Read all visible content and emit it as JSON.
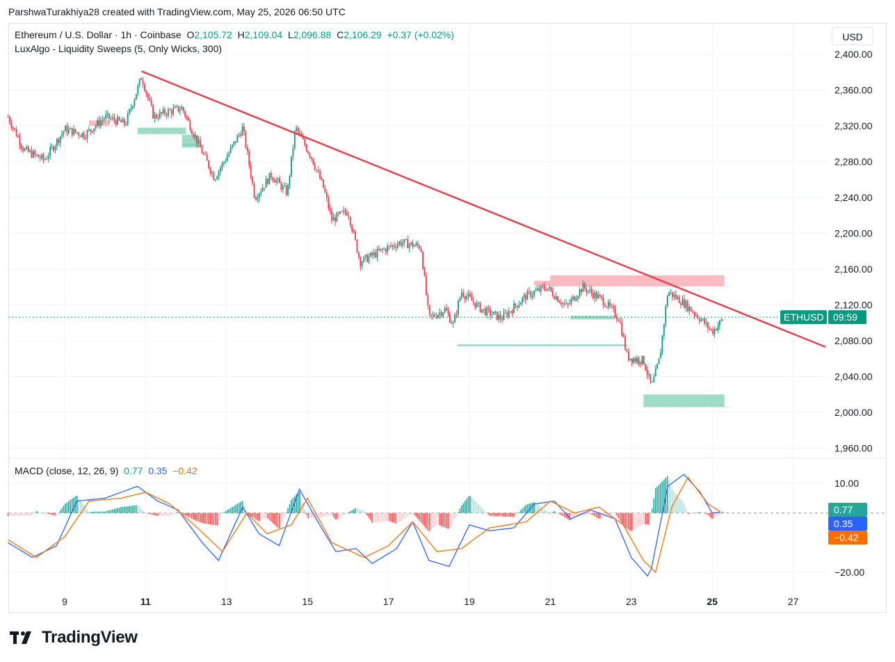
{
  "header": {
    "attribution": "ParshwaTurakhiya28 created with TradingView.com, May 25, 2026 06:50 UTC"
  },
  "legend": {
    "symbol": "Ethereum / U.S. Dollar · 1h · Coinbase",
    "o_label": "O",
    "o_value": "2,105.72",
    "h_label": "H",
    "h_value": "2,109.04",
    "l_label": "L",
    "l_value": "2,096.88",
    "c_label": "C",
    "c_value": "2,106.29",
    "change": "+0.37 (+0.02%)",
    "indicator": "LuxAlgo - Liquidity Sweeps (5, Only Wicks, 300)"
  },
  "macd_legend": {
    "title": "MACD (close, 12, 26, 9)",
    "hist": "0.77",
    "macd": "0.35",
    "signal": "−0.42"
  },
  "currency_label": "USD",
  "footer": {
    "brand": "TradingView"
  },
  "colors": {
    "up": "#089981",
    "down": "#f23645",
    "trendline": "#e0424f",
    "macd": "#2962ff",
    "signal": "#ff6d00",
    "zone_green": "#7fcfb3",
    "zone_red": "#f7a9b0"
  },
  "chart_data": [
    {
      "type": "candlestick",
      "title": "Ethereum / U.S. Dollar · 1h · Coinbase",
      "ylim": [
        1940,
        2420
      ],
      "y_ticks": [
        "2,400.00",
        "2,360.00",
        "2,320.00",
        "2,280.00",
        "2,240.00",
        "2,200.00",
        "2,160.00",
        "2,120.00",
        "2,080.00",
        "2,040.00",
        "2,000.00",
        "1,960.00"
      ],
      "x_ticks": [
        "9",
        "11",
        "13",
        "15",
        "17",
        "19",
        "21",
        "23",
        "25",
        "27"
      ],
      "x_ticks_bold": [
        "11",
        "25"
      ],
      "price_label": {
        "symbol": "ETHUSD",
        "countdown": "09:59",
        "price": 2106.29
      },
      "trendline": {
        "from": {
          "day": 10.9,
          "price": 2381
        },
        "to": {
          "day": 27.8,
          "price": 2073
        }
      },
      "path_close": [
        {
          "day": 7.6,
          "price": 2330
        },
        {
          "day": 8.0,
          "price": 2293
        },
        {
          "day": 8.5,
          "price": 2282
        },
        {
          "day": 9.0,
          "price": 2316
        },
        {
          "day": 9.5,
          "price": 2310
        },
        {
          "day": 10.0,
          "price": 2330
        },
        {
          "day": 10.5,
          "price": 2322
        },
        {
          "day": 10.9,
          "price": 2375
        },
        {
          "day": 11.2,
          "price": 2330
        },
        {
          "day": 11.5,
          "price": 2335
        },
        {
          "day": 11.9,
          "price": 2340
        },
        {
          "day": 12.3,
          "price": 2300
        },
        {
          "day": 12.7,
          "price": 2262
        },
        {
          "day": 13.0,
          "price": 2285
        },
        {
          "day": 13.4,
          "price": 2318
        },
        {
          "day": 13.7,
          "price": 2240
        },
        {
          "day": 14.1,
          "price": 2265
        },
        {
          "day": 14.5,
          "price": 2245
        },
        {
          "day": 14.7,
          "price": 2318
        },
        {
          "day": 15.1,
          "price": 2285
        },
        {
          "day": 15.4,
          "price": 2250
        },
        {
          "day": 15.6,
          "price": 2215
        },
        {
          "day": 16.0,
          "price": 2225
        },
        {
          "day": 16.3,
          "price": 2168
        },
        {
          "day": 16.8,
          "price": 2180
        },
        {
          "day": 17.3,
          "price": 2190
        },
        {
          "day": 17.8,
          "price": 2185
        },
        {
          "day": 18.0,
          "price": 2105
        },
        {
          "day": 18.4,
          "price": 2115
        },
        {
          "day": 18.6,
          "price": 2098
        },
        {
          "day": 18.8,
          "price": 2135
        },
        {
          "day": 19.3,
          "price": 2115
        },
        {
          "day": 19.8,
          "price": 2105
        },
        {
          "day": 20.4,
          "price": 2130
        },
        {
          "day": 20.9,
          "price": 2140
        },
        {
          "day": 21.4,
          "price": 2118
        },
        {
          "day": 21.8,
          "price": 2140
        },
        {
          "day": 22.3,
          "price": 2125
        },
        {
          "day": 22.7,
          "price": 2105
        },
        {
          "day": 22.9,
          "price": 2062
        },
        {
          "day": 23.3,
          "price": 2058
        },
        {
          "day": 23.5,
          "price": 2028
        },
        {
          "day": 23.7,
          "price": 2060
        },
        {
          "day": 23.9,
          "price": 2135
        },
        {
          "day": 24.3,
          "price": 2122
        },
        {
          "day": 24.7,
          "price": 2105
        },
        {
          "day": 25.0,
          "price": 2090
        },
        {
          "day": 25.3,
          "price": 2106
        }
      ],
      "zones_green": [
        {
          "from_day": 10.8,
          "to_day": 12.0,
          "top": 2318,
          "bottom": 2311
        },
        {
          "from_day": 11.9,
          "to_day": 12.3,
          "top": 2310,
          "bottom": 2298
        },
        {
          "from_day": 11.9,
          "to_day": 12.3,
          "top": 2300,
          "bottom": 2296
        },
        {
          "from_day": 21.5,
          "to_day": 22.6,
          "top": 2108,
          "bottom": 2104
        },
        {
          "from_day": 18.7,
          "to_day": 22.9,
          "top": 2076,
          "bottom": 2074
        },
        {
          "from_day": 23.0,
          "to_day": 23.3,
          "top": 2058,
          "bottom": 2054
        },
        {
          "from_day": 23.3,
          "to_day": 25.3,
          "top": 2020,
          "bottom": 2006
        }
      ],
      "zones_red": [
        {
          "from_day": 9.6,
          "to_day": 10.1,
          "top": 2326,
          "bottom": 2320
        },
        {
          "from_day": 21.0,
          "to_day": 25.3,
          "top": 2153,
          "bottom": 2141
        },
        {
          "from_day": 20.6,
          "to_day": 21.0,
          "top": 2147,
          "bottom": 2142
        }
      ]
    },
    {
      "type": "macd",
      "title": "MACD (close, 12, 26, 9)",
      "ylim": [
        -24,
        14
      ],
      "y_ticks": [
        "10.00",
        "−20.00"
      ],
      "current": {
        "histogram": 0.77,
        "macd": 0.35,
        "signal": -0.42
      },
      "macd_path": [
        {
          "day": 7.6,
          "price": -10
        },
        {
          "day": 8.2,
          "price": -15
        },
        {
          "day": 8.8,
          "price": -11
        },
        {
          "day": 9.3,
          "price": 4
        },
        {
          "day": 10.0,
          "price": 5
        },
        {
          "day": 10.8,
          "price": 9
        },
        {
          "day": 11.3,
          "price": 4
        },
        {
          "day": 11.8,
          "price": 1
        },
        {
          "day": 12.4,
          "price": -10
        },
        {
          "day": 12.8,
          "price": -16
        },
        {
          "day": 13.4,
          "price": 2
        },
        {
          "day": 13.8,
          "price": -7
        },
        {
          "day": 14.3,
          "price": -11
        },
        {
          "day": 14.8,
          "price": 8
        },
        {
          "day": 15.3,
          "price": -4
        },
        {
          "day": 15.7,
          "price": -13
        },
        {
          "day": 16.2,
          "price": -12
        },
        {
          "day": 16.6,
          "price": -17
        },
        {
          "day": 17.2,
          "price": -12
        },
        {
          "day": 17.6,
          "price": -3
        },
        {
          "day": 18.0,
          "price": -16
        },
        {
          "day": 18.5,
          "price": -18
        },
        {
          "day": 19.0,
          "price": -4
        },
        {
          "day": 19.5,
          "price": -6
        },
        {
          "day": 20.1,
          "price": -5
        },
        {
          "day": 20.6,
          "price": 3
        },
        {
          "day": 21.1,
          "price": 4
        },
        {
          "day": 21.5,
          "price": -2
        },
        {
          "day": 22.0,
          "price": 1
        },
        {
          "day": 22.6,
          "price": -2
        },
        {
          "day": 23.0,
          "price": -15
        },
        {
          "day": 23.45,
          "price": -22
        },
        {
          "day": 23.9,
          "price": 9
        },
        {
          "day": 24.3,
          "price": 13
        },
        {
          "day": 24.7,
          "price": 7
        },
        {
          "day": 25.0,
          "price": 0
        },
        {
          "day": 25.3,
          "price": 0.35
        }
      ],
      "signal_path": [
        {
          "day": 7.6,
          "price": -9
        },
        {
          "day": 8.3,
          "price": -15
        },
        {
          "day": 9.0,
          "price": -8
        },
        {
          "day": 9.6,
          "price": 4
        },
        {
          "day": 10.4,
          "price": 5
        },
        {
          "day": 11.0,
          "price": 7
        },
        {
          "day": 11.6,
          "price": 3
        },
        {
          "day": 12.2,
          "price": -4
        },
        {
          "day": 12.9,
          "price": -13
        },
        {
          "day": 13.5,
          "price": 0
        },
        {
          "day": 14.0,
          "price": -7
        },
        {
          "day": 14.6,
          "price": -4
        },
        {
          "day": 15.0,
          "price": 5
        },
        {
          "day": 15.6,
          "price": -10
        },
        {
          "day": 16.4,
          "price": -15
        },
        {
          "day": 17.0,
          "price": -11
        },
        {
          "day": 17.6,
          "price": -3
        },
        {
          "day": 18.2,
          "price": -13
        },
        {
          "day": 18.8,
          "price": -12
        },
        {
          "day": 19.5,
          "price": -5
        },
        {
          "day": 20.4,
          "price": -3
        },
        {
          "day": 21.0,
          "price": 4
        },
        {
          "day": 21.6,
          "price": 0
        },
        {
          "day": 22.2,
          "price": 2
        },
        {
          "day": 22.8,
          "price": -4
        },
        {
          "day": 23.3,
          "price": -16
        },
        {
          "day": 23.6,
          "price": -20
        },
        {
          "day": 24.0,
          "price": 2
        },
        {
          "day": 24.4,
          "price": 12
        },
        {
          "day": 24.9,
          "price": 3
        },
        {
          "day": 25.3,
          "price": -0.42
        }
      ]
    }
  ]
}
